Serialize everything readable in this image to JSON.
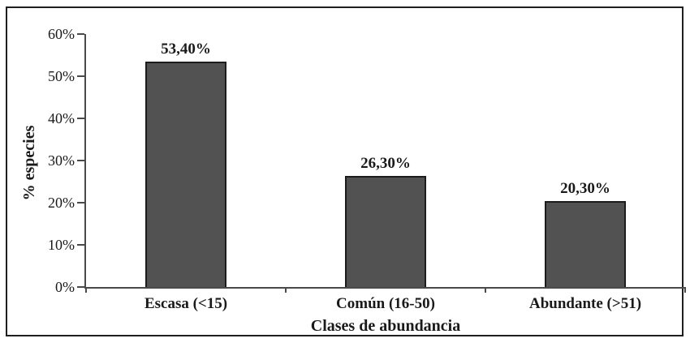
{
  "chart_data": {
    "type": "bar",
    "title": "",
    "xlabel": "Clases de abundancia",
    "ylabel": "% especies",
    "categories": [
      "Escasa (<15)",
      "Común (16-50)",
      "Abundante (>51)"
    ],
    "values": [
      53.4,
      26.3,
      20.3
    ],
    "value_labels": [
      "53,40%",
      "26,30%",
      "20,30%"
    ],
    "ytick_values": [
      0,
      10,
      20,
      30,
      40,
      50,
      60
    ],
    "ytick_labels": [
      "0%",
      "10%",
      "20%",
      "30%",
      "40%",
      "50%",
      "60%"
    ],
    "ylim": [
      0,
      60
    ],
    "grid": false,
    "legend": "none",
    "colors": {
      "bar_fill": "#525252",
      "bar_border": "#1c1c1c",
      "axis": "#4a4a4a",
      "text": "#1a1a1a",
      "frame_border": "#1f1f1f",
      "background": "#ffffff"
    }
  }
}
